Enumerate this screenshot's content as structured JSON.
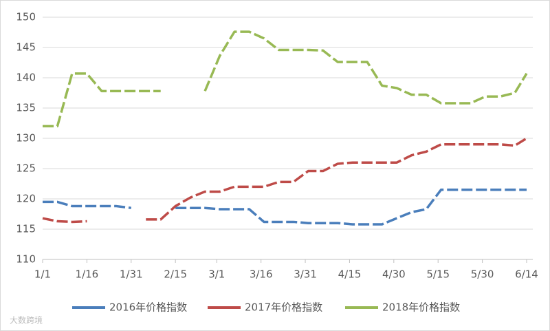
{
  "chart_data": {
    "type": "line",
    "x": [
      0,
      5,
      10,
      15,
      20,
      25,
      30,
      35,
      40,
      45,
      50,
      55,
      60,
      65,
      70,
      75,
      80,
      85,
      90,
      95,
      100,
      105,
      110,
      115,
      120,
      125,
      130,
      135,
      140,
      145,
      150,
      155,
      160,
      164
    ],
    "series": [
      {
        "name": "2016年价格指数",
        "color": "#4a7ebb",
        "values": [
          119.5,
          119.5,
          118.8,
          118.8,
          118.8,
          118.8,
          118.5,
          null,
          null,
          118.5,
          118.5,
          118.5,
          118.3,
          118.3,
          118.3,
          116.2,
          116.2,
          116.2,
          116,
          116,
          116,
          115.8,
          115.8,
          115.8,
          116.8,
          117.8,
          118.3,
          121.5,
          121.5,
          121.5,
          121.5,
          121.5,
          121.5,
          121.5
        ]
      },
      {
        "name": "2017年价格指数",
        "color": "#be4b48",
        "values": [
          116.8,
          116.3,
          116.2,
          116.3,
          null,
          null,
          null,
          116.6,
          116.6,
          118.8,
          120.2,
          121.2,
          121.2,
          122,
          122,
          122,
          122.8,
          122.8,
          124.6,
          124.6,
          125.8,
          126,
          126,
          126,
          126,
          127.2,
          127.8,
          129,
          129,
          129,
          129,
          129,
          128.8,
          130
        ]
      },
      {
        "name": "2018年价格指数",
        "color": "#98b954",
        "values": [
          132,
          132,
          140.7,
          140.7,
          137.8,
          137.8,
          137.8,
          137.8,
          137.8,
          null,
          null,
          137.8,
          143.6,
          147.6,
          147.6,
          146.5,
          144.6,
          144.6,
          144.6,
          144.5,
          142.6,
          142.6,
          142.6,
          138.7,
          138.3,
          137.2,
          137.2,
          135.8,
          135.8,
          135.8,
          136.9,
          136.9,
          137.5,
          140.7
        ]
      }
    ],
    "xlim": [
      0,
      164
    ],
    "xticks": [
      {
        "value": 0,
        "label": "1/1"
      },
      {
        "value": 15,
        "label": "1/16"
      },
      {
        "value": 30,
        "label": "1/31"
      },
      {
        "value": 45,
        "label": "2/15"
      },
      {
        "value": 59,
        "label": "3/1"
      },
      {
        "value": 74,
        "label": "3/16"
      },
      {
        "value": 89,
        "label": "3/31"
      },
      {
        "value": 104,
        "label": "4/15"
      },
      {
        "value": 119,
        "label": "4/30"
      },
      {
        "value": 134,
        "label": "5/15"
      },
      {
        "value": 149,
        "label": "5/30"
      },
      {
        "value": 164,
        "label": "6/14"
      }
    ],
    "ylim": [
      110,
      150
    ],
    "yticks": [
      110,
      115,
      120,
      125,
      130,
      135,
      140,
      145,
      150
    ],
    "grid": true,
    "legend": "bottom",
    "watermark": "大数跨境"
  }
}
